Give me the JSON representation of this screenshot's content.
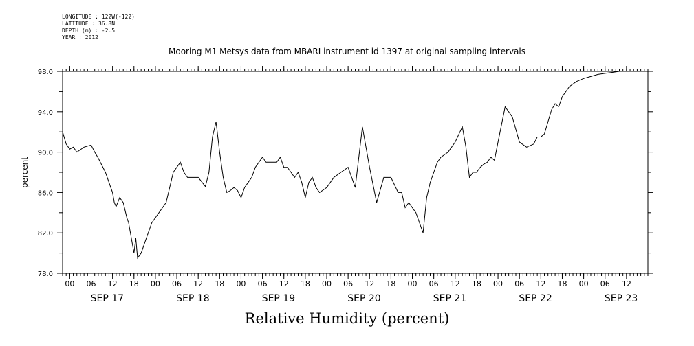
{
  "meta": {
    "lines": [
      "LONGITUDE : 122W(-122)",
      "LATITUDE : 36.8N",
      "DEPTH (m) : -2.5",
      "YEAR : 2012"
    ]
  },
  "chart_data": {
    "type": "line",
    "title": "Mooring M1 Metsys data from MBARI instrument id 1397 at original sampling intervals",
    "xlabel": "Relative Humidity (percent)",
    "ylabel": "percent",
    "ylim": [
      78.0,
      98.0
    ],
    "yticks": [
      "78.0",
      "82.0",
      "86.0",
      "90.0",
      "94.0",
      "98.0"
    ],
    "xlim_hours": [
      -2,
      162
    ],
    "xtick_hour_labels": [
      "00",
      "06",
      "12",
      "18",
      "00",
      "06",
      "12",
      "18",
      "00",
      "06",
      "12",
      "18",
      "00",
      "06",
      "12",
      "18",
      "00",
      "06",
      "12",
      "18",
      "00",
      "06",
      "12",
      "18",
      "00",
      "06",
      "12"
    ],
    "xtick_day_labels": [
      "SEP 17",
      "SEP 18",
      "SEP 19",
      "SEP 20",
      "SEP 21",
      "SEP 22",
      "SEP 23"
    ],
    "grid": false,
    "series": [
      {
        "x_hours_since_sep17_00": [
          -2,
          -1,
          0,
          1,
          2,
          4,
          6,
          7,
          8,
          10,
          12,
          12.5,
          13,
          14,
          15,
          16,
          16.5,
          17,
          18,
          18.5,
          19,
          20,
          21,
          22,
          23,
          24,
          25,
          26,
          27,
          28,
          29,
          30,
          31,
          32,
          33,
          34,
          35,
          36,
          38,
          39,
          40,
          41,
          42,
          43,
          44,
          45,
          46,
          47,
          48,
          49,
          50,
          51,
          52,
          53,
          54,
          55,
          56,
          57,
          58,
          59,
          60,
          61,
          62,
          63,
          64,
          65,
          66,
          67,
          68,
          69,
          70,
          72,
          74,
          76,
          78,
          80,
          82,
          84,
          86,
          88,
          90,
          92,
          93,
          94,
          95,
          96,
          97,
          98,
          99,
          100,
          101,
          102,
          103,
          104,
          106,
          108,
          110,
          111,
          112,
          113,
          114,
          115,
          116,
          117,
          118,
          119,
          120,
          122,
          124,
          126,
          128,
          130,
          131,
          132,
          133,
          134,
          135,
          136,
          137,
          138,
          140,
          142,
          144,
          146,
          148,
          150,
          152,
          154,
          156,
          158,
          160,
          161,
          162
        ],
        "values": [
          92.0,
          90.8,
          90.3,
          90.5,
          90.0,
          90.5,
          90.7,
          90.0,
          89.4,
          88.0,
          86.0,
          85.0,
          84.6,
          85.5,
          85.0,
          83.5,
          83.0,
          82.0,
          80.0,
          81.5,
          79.5,
          80.0,
          81.0,
          82.0,
          83.0,
          83.5,
          84.0,
          84.5,
          85.0,
          86.5,
          88.0,
          88.5,
          89.0,
          88.0,
          87.5,
          87.5,
          87.5,
          87.5,
          86.6,
          88.0,
          91.5,
          93.0,
          90.0,
          87.5,
          86.0,
          86.2,
          86.5,
          86.2,
          85.5,
          86.5,
          87.0,
          87.5,
          88.5,
          89.0,
          89.5,
          89.0,
          89.0,
          89.0,
          89.0,
          89.5,
          88.5,
          88.5,
          88.0,
          87.5,
          88.0,
          87.0,
          85.5,
          87.0,
          87.5,
          86.5,
          86.0,
          86.5,
          87.5,
          88.0,
          88.5,
          86.5,
          92.5,
          88.5,
          85.0,
          87.5,
          87.5,
          86.0,
          86.0,
          84.5,
          85.0,
          84.5,
          84.0,
          83.0,
          82.0,
          85.5,
          87.0,
          88.0,
          89.0,
          89.5,
          90.0,
          91.0,
          92.5,
          90.5,
          87.5,
          88.0,
          88.0,
          88.5,
          88.8,
          89.0,
          89.5,
          89.2,
          91.0,
          94.5,
          93.5,
          91.0,
          90.5,
          90.8,
          91.5,
          91.5,
          91.8,
          93.0,
          94.2,
          94.8,
          94.5,
          95.5,
          96.5,
          97.0,
          97.3,
          97.5,
          97.7,
          97.8,
          97.9,
          98.0,
          98.0
        ]
      }
    ]
  }
}
